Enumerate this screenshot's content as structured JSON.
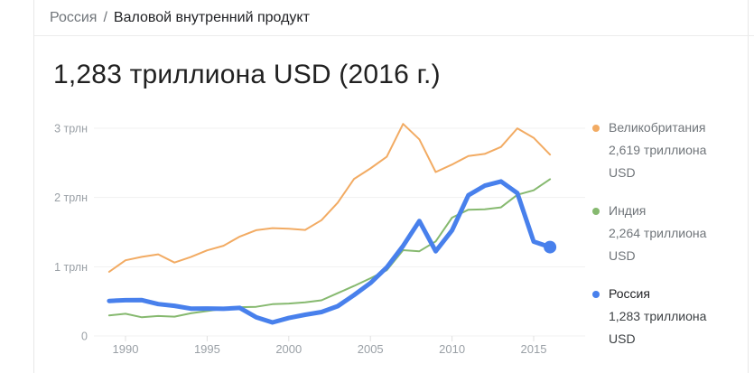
{
  "breadcrumb": {
    "root": "Россия",
    "separator": "/",
    "current": "Валовой внутренний продукт"
  },
  "title": "1,283 триллиона USD (2016 г.)",
  "chart_data": {
    "type": "line",
    "title": "1,283 триллиона USD (2016 г.)",
    "x": [
      1989,
      1990,
      1991,
      1992,
      1993,
      1994,
      1995,
      1996,
      1997,
      1998,
      1999,
      2000,
      2001,
      2002,
      2003,
      2004,
      2005,
      2006,
      2007,
      2008,
      2009,
      2010,
      2011,
      2012,
      2013,
      2014,
      2015,
      2016
    ],
    "xlim": [
      1989,
      2016
    ],
    "ylim": [
      0,
      3.2
    ],
    "grid": true,
    "legend_position": "right",
    "y_ticks": [
      {
        "value": 3,
        "label": "3 трлн"
      },
      {
        "value": 2,
        "label": "2 трлн"
      },
      {
        "value": 1,
        "label": "1 трлн"
      },
      {
        "value": 0,
        "label": "0"
      }
    ],
    "x_ticks": [
      1990,
      1995,
      2000,
      2005,
      2010,
      2015
    ],
    "series": [
      {
        "name": "Великобритания",
        "color": "#f2ab63",
        "line_width": 2,
        "emphasis": false,
        "end_dot": false,
        "values": [
          0.927,
          1.093,
          1.142,
          1.179,
          1.061,
          1.14,
          1.237,
          1.303,
          1.436,
          1.527,
          1.557,
          1.548,
          1.531,
          1.672,
          1.925,
          2.268,
          2.42,
          2.588,
          3.063,
          2.84,
          2.367,
          2.475,
          2.6,
          2.63,
          2.73,
          2.999,
          2.861,
          2.619
        ]
      },
      {
        "name": "Индия",
        "color": "#86b96f",
        "line_width": 2,
        "emphasis": false,
        "end_dot": false,
        "values": [
          0.296,
          0.321,
          0.27,
          0.288,
          0.279,
          0.327,
          0.36,
          0.393,
          0.416,
          0.421,
          0.459,
          0.468,
          0.485,
          0.515,
          0.618,
          0.722,
          0.834,
          0.949,
          1.239,
          1.224,
          1.365,
          1.708,
          1.823,
          1.828,
          1.857,
          2.039,
          2.104,
          2.264
        ]
      },
      {
        "name": "Россия",
        "color": "#4880ec",
        "line_width": 5,
        "emphasis": true,
        "end_dot": true,
        "values": [
          0.506,
          0.517,
          0.518,
          0.46,
          0.435,
          0.395,
          0.396,
          0.392,
          0.405,
          0.271,
          0.196,
          0.26,
          0.307,
          0.345,
          0.43,
          0.591,
          0.764,
          0.99,
          1.3,
          1.661,
          1.223,
          1.525,
          2.032,
          2.17,
          2.231,
          2.064,
          1.363,
          1.283
        ]
      }
    ]
  },
  "legend": {
    "items": [
      {
        "name": "Великобритания",
        "value": "2,619 триллиона USD",
        "color": "#f2ab63",
        "active": false
      },
      {
        "name": "Индия",
        "value": "2,264 триллиона USD",
        "color": "#86b96f",
        "active": false
      },
      {
        "name": "Россия",
        "value": "1,283 триллиона USD",
        "color": "#4880ec",
        "active": true
      }
    ]
  },
  "axis_colors": {
    "gridline": "#f1f1f1",
    "tick": "#e0e0e0",
    "label": "#9aa0a6"
  }
}
